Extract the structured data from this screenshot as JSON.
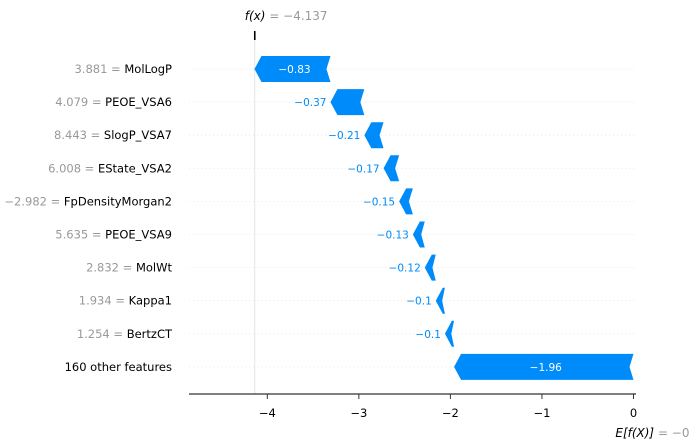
{
  "chart_data": {
    "type": "waterfall",
    "fx_label": "f(x)",
    "fx_value_text": " = −4.137",
    "ex_label": "E[f(X)]",
    "ex_value_text": " = −0",
    "base_value": 0,
    "final_value": -4.137,
    "xlim": [
      -4.8,
      0.05
    ],
    "xticks": [
      -4,
      -3,
      -2,
      -1,
      0
    ],
    "xtick_labels": [
      "−4",
      "−3",
      "−2",
      "−1",
      "0"
    ],
    "features": [
      {
        "value": "3.881",
        "name": "MolLogP",
        "contribution": -0.83,
        "label": "−0.83"
      },
      {
        "value": "4.079",
        "name": "PEOE_VSA6",
        "contribution": -0.37,
        "label": "−0.37"
      },
      {
        "value": "8.443",
        "name": "SlogP_VSA7",
        "contribution": -0.21,
        "label": "−0.21"
      },
      {
        "value": "6.008",
        "name": "EState_VSA2",
        "contribution": -0.17,
        "label": "−0.17"
      },
      {
        "value": "−2.982",
        "name": "FpDensityMorgan2",
        "contribution": -0.15,
        "label": "−0.15"
      },
      {
        "value": "5.635",
        "name": "PEOE_VSA9",
        "contribution": -0.13,
        "label": "−0.13"
      },
      {
        "value": "2.832",
        "name": "MolWt",
        "contribution": -0.12,
        "label": "−0.12"
      },
      {
        "value": "1.934",
        "name": "Kappa1",
        "contribution": -0.1,
        "label": "−0.1"
      },
      {
        "value": "1.254",
        "name": "BertzCT",
        "contribution": -0.1,
        "label": "−0.1"
      },
      {
        "value": "",
        "name": "160 other features",
        "contribution": -1.96,
        "label": "−1.96"
      }
    ],
    "colors": {
      "negative": "#008bfb",
      "axis": "#333333",
      "gridline": "#e5e5e5",
      "muted": "#999999"
    }
  }
}
